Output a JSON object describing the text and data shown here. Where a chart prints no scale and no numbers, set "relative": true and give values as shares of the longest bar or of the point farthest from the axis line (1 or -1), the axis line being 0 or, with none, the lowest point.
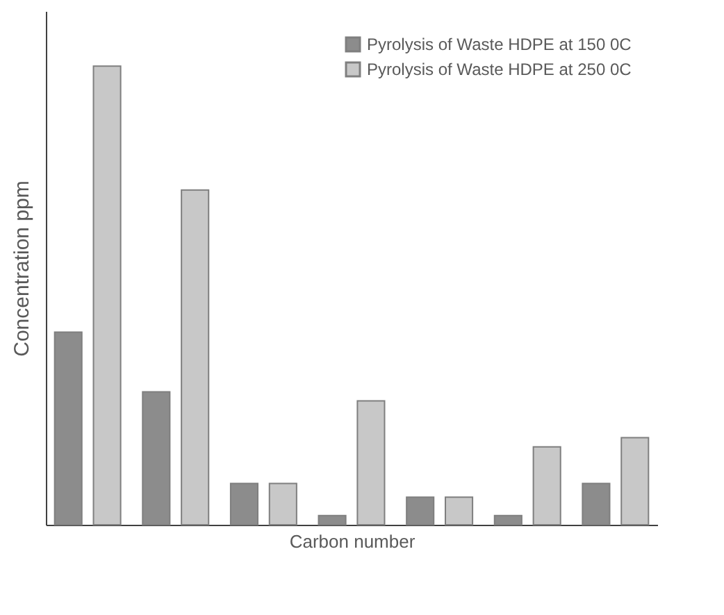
{
  "chart_data": {
    "type": "bar",
    "relative": true,
    "xlabel": "Carbon number",
    "ylabel": "Concentration ppm",
    "categories": [
      null,
      null,
      null,
      null,
      null,
      null,
      null
    ],
    "series": [
      {
        "name": "Pyrolysis of Waste HDPE at 150 0C",
        "color": "#8c8c8c",
        "values": [
          0.42,
          0.29,
          0.09,
          0.02,
          0.06,
          0.02,
          0.09
        ]
      },
      {
        "name": "Pyrolysis of Waste HDPE at 250 0C",
        "color": "#c8c8c8",
        "values": [
          1,
          0.73,
          0.09,
          0.27,
          0.06,
          0.17,
          0.19
        ]
      }
    ],
    "legend": "top right"
  }
}
